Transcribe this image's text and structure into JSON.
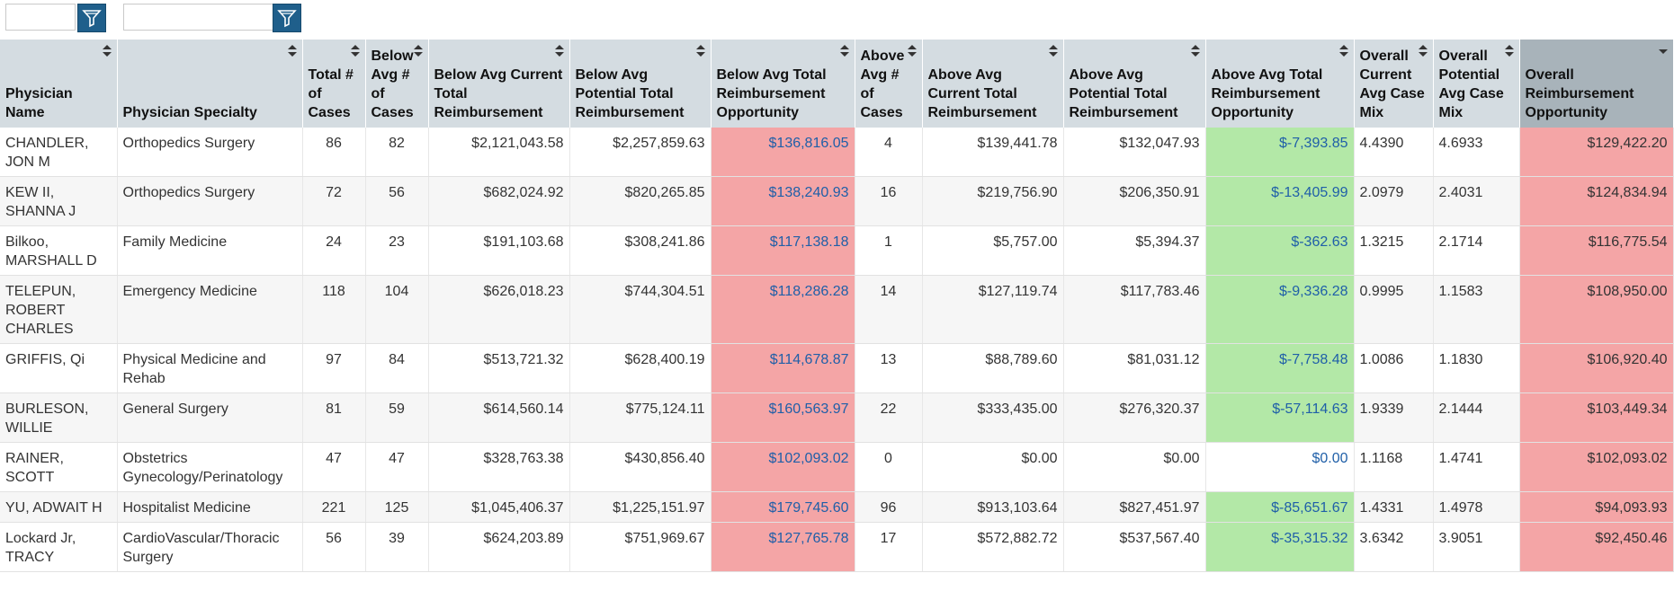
{
  "columns": [
    "Physician Name",
    "Physician Specialty",
    "Total # of Cases",
    "Below Avg # of Cases",
    "Below Avg Current Total Reimbursement",
    "Below Avg Potential Total Reimbursement",
    "Below Avg Total Reimbursement Opportunity",
    "Above Avg # of Cases",
    "Above Avg Current Total Reimbursement",
    "Above Avg Potential Total Reimbursement",
    "Above Avg Total Reimbursement Opportunity",
    "Overall Current Avg Case Mix",
    "Overall Potential Avg Case Mix",
    "Overall Reimbursement Opportunity"
  ],
  "rows": [
    [
      "CHANDLER, JON M",
      "Orthopedics Surgery",
      "86",
      "82",
      "$2,121,043.58",
      "$2,257,859.63",
      "$136,816.05",
      "4",
      "$139,441.78",
      "$132,047.93",
      "$-7,393.85",
      "4.4390",
      "4.6933",
      "$129,422.20"
    ],
    [
      "KEW II, SHANNA J",
      "Orthopedics Surgery",
      "72",
      "56",
      "$682,024.92",
      "$820,265.85",
      "$138,240.93",
      "16",
      "$219,756.90",
      "$206,350.91",
      "$-13,405.99",
      "2.0979",
      "2.4031",
      "$124,834.94"
    ],
    [
      "Bilkoo, MARSHALL D",
      "Family Medicine",
      "24",
      "23",
      "$191,103.68",
      "$308,241.86",
      "$117,138.18",
      "1",
      "$5,757.00",
      "$5,394.37",
      "$-362.63",
      "1.3215",
      "2.1714",
      "$116,775.54"
    ],
    [
      "TELEPUN, ROBERT CHARLES",
      "Emergency Medicine",
      "118",
      "104",
      "$626,018.23",
      "$744,304.51",
      "$118,286.28",
      "14",
      "$127,119.74",
      "$117,783.46",
      "$-9,336.28",
      "0.9995",
      "1.1583",
      "$108,950.00"
    ],
    [
      "GRIFFIS, Qi",
      "Physical Medicine and Rehab",
      "97",
      "84",
      "$513,721.32",
      "$628,400.19",
      "$114,678.87",
      "13",
      "$88,789.60",
      "$81,031.12",
      "$-7,758.48",
      "1.0086",
      "1.1830",
      "$106,920.40"
    ],
    [
      "BURLESON, WILLIE",
      "General Surgery",
      "81",
      "59",
      "$614,560.14",
      "$775,124.11",
      "$160,563.97",
      "22",
      "$333,435.00",
      "$276,320.37",
      "$-57,114.63",
      "1.9339",
      "2.1444",
      "$103,449.34"
    ],
    [
      "RAINER, SCOTT",
      "Obstetrics Gynecology/Perinatology",
      "47",
      "47",
      "$328,763.38",
      "$430,856.40",
      "$102,093.02",
      "0",
      "$0.00",
      "$0.00",
      "$0.00",
      "1.1168",
      "1.4741",
      "$102,093.02"
    ],
    [
      "YU, ADWAIT H",
      "Hospitalist Medicine",
      "221",
      "125",
      "$1,045,406.37",
      "$1,225,151.97",
      "$179,745.60",
      "96",
      "$913,103.64",
      "$827,451.97",
      "$-85,651.67",
      "1.4331",
      "1.4978",
      "$94,093.93"
    ],
    [
      "Lockard Jr, TRACY",
      "CardioVascular/Thoracic Surgery",
      "56",
      "39",
      "$624,203.89",
      "$751,969.67",
      "$127,765.78",
      "17",
      "$572,882.72",
      "$537,567.40",
      "$-35,315.32",
      "3.6342",
      "3.9051",
      "$92,450.46"
    ]
  ],
  "colors": {
    "header_bg": "#d4dce1",
    "sorted_header_bg": "#a8b3ba",
    "negative_opportunity": "#f4a5a6",
    "positive_opportunity": "#b3e8a7",
    "filter_button": "#1f5f8b",
    "link_text": "#1f5fa8"
  },
  "icons": {
    "filter_button": "filter-funnel-icon",
    "sort": "sort-arrows-icon",
    "sort_active": "sort-descending-icon"
  }
}
